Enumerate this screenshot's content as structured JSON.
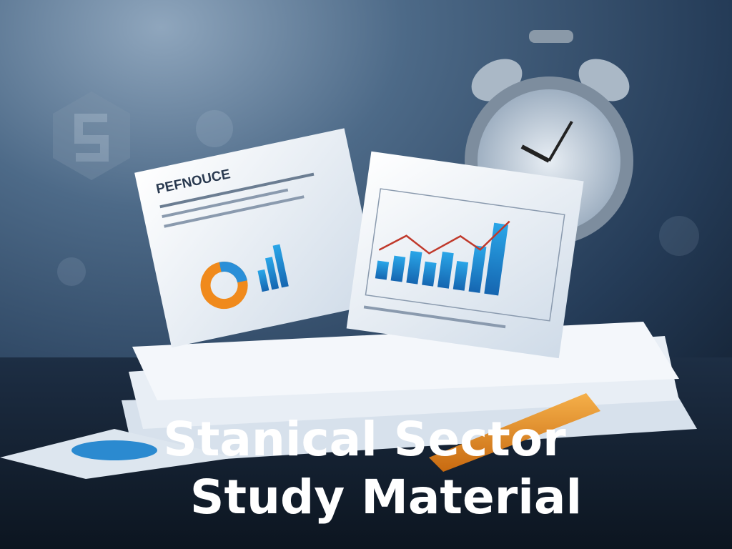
{
  "image": {
    "document_heading": "PEFNOUCE",
    "title_lines": [
      "Stanical Sector",
      "Study Material"
    ]
  }
}
